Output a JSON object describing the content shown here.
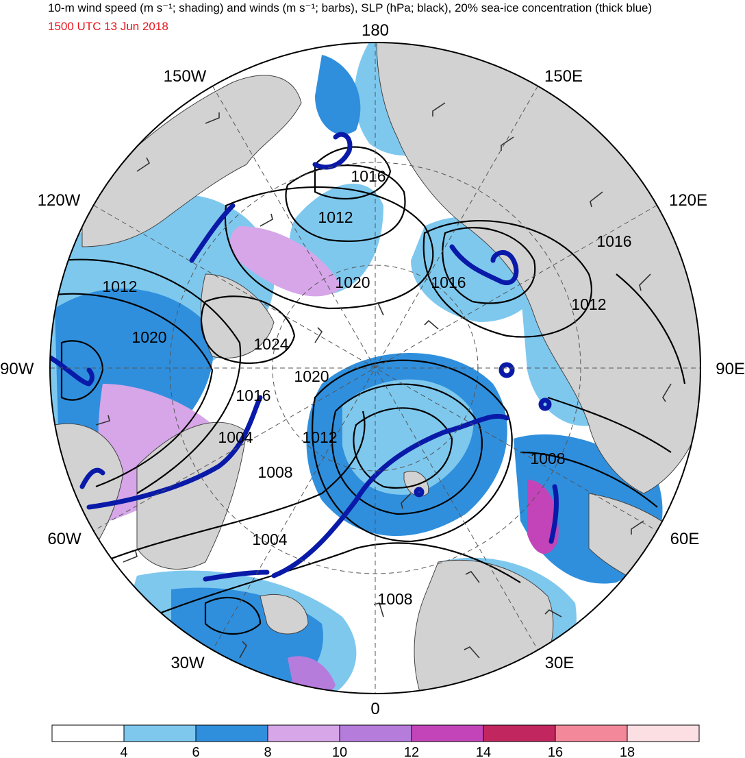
{
  "title": "10-m wind speed (m s⁻¹; shading) and winds (m s⁻¹; barbs), SLP (hPa; black), 20% sea-ice concentration (thick blue)",
  "valid_time": "1500 UTC 13 Jun 2018",
  "longitude_labels": [
    "180",
    "150E",
    "120E",
    "90E",
    "60E",
    "30E",
    "0",
    "30W",
    "60W",
    "90W",
    "120W",
    "150W"
  ],
  "slp_labels": [
    "1016",
    "1012",
    "1020",
    "1016",
    "1016",
    "1012",
    "1012",
    "1020",
    "1024",
    "1020",
    "1016",
    "1004",
    "1012",
    "1008",
    "1008",
    "1004",
    "1008"
  ],
  "colorbar": {
    "ticks": [
      "4",
      "6",
      "8",
      "10",
      "12",
      "14",
      "16",
      "18"
    ],
    "colors": [
      "#ffffff",
      "#7ec8ee",
      "#2f8fdd",
      "#d6a6e8",
      "#b67cdc",
      "#c244b8",
      "#c2265e",
      "#f2889a",
      "#fbdfe3"
    ]
  },
  "palette": {
    "land": "#d2d2d2",
    "ocean_calm": "#ffffff",
    "slp_contour": "#000000",
    "sea_ice_edge": "#0a1aa8"
  }
}
